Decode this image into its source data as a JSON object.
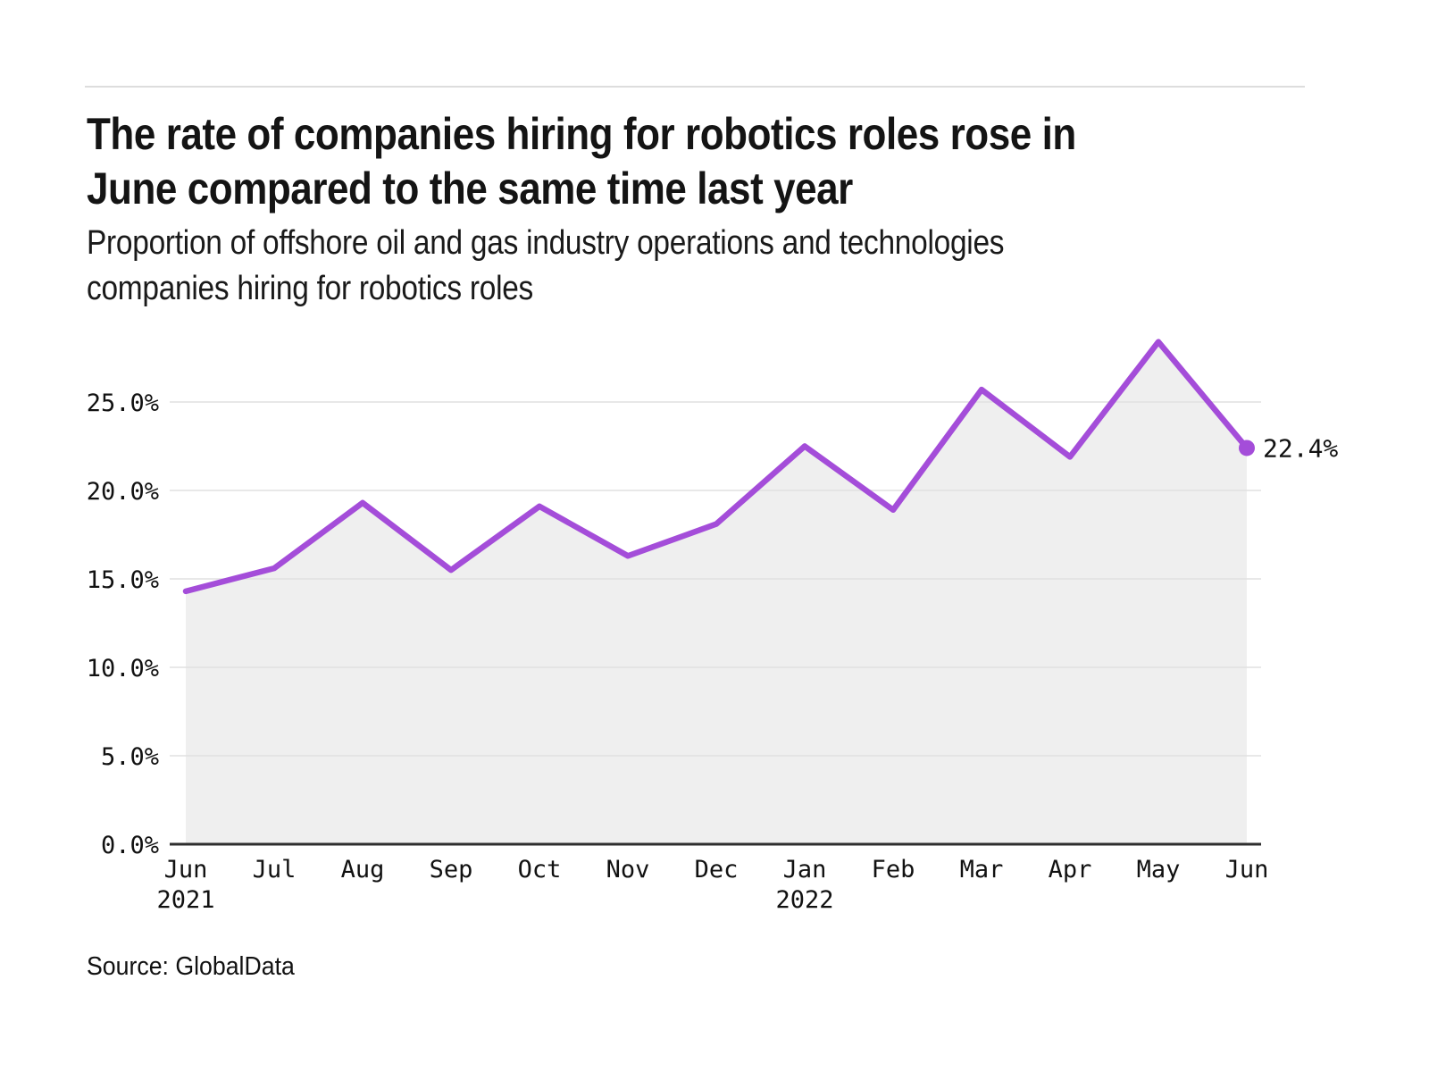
{
  "header": {
    "title_lines": [
      "The rate of companies hiring for robotics roles rose in",
      "June compared to the same time last year"
    ],
    "subtitle_lines": [
      "Proportion of offshore oil and gas industry operations and technologies",
      "companies hiring for robotics roles"
    ]
  },
  "source": {
    "label": "Source: GlobalData"
  },
  "chart_data": {
    "type": "area",
    "title": "The rate of companies hiring for robotics roles rose in June compared to the same time last year",
    "subtitle": "Proportion of offshore oil and gas industry operations and technologies companies hiring for robotics roles",
    "source": "Source: GlobalData",
    "categories": [
      "Jun",
      "Jul",
      "Aug",
      "Sep",
      "Oct",
      "Nov",
      "Dec",
      "Jan",
      "Feb",
      "Mar",
      "Apr",
      "May",
      "Jun"
    ],
    "year_labels": [
      {
        "index": 0,
        "label": "2021"
      },
      {
        "index": 7,
        "label": "2022"
      }
    ],
    "values": [
      14.3,
      15.6,
      19.3,
      15.5,
      19.1,
      16.3,
      18.1,
      22.5,
      18.9,
      25.7,
      21.9,
      28.4,
      22.4
    ],
    "unit": "%",
    "y_ticks": [
      0,
      5,
      10,
      15,
      20,
      25
    ],
    "y_tick_labels": [
      "0.0%",
      "5.0%",
      "10.0%",
      "15.0%",
      "20.0%",
      "25.0%"
    ],
    "ylim": [
      0,
      30
    ],
    "end_label": "22.4%",
    "grid": "horizontal",
    "legend": "none",
    "line_color": "#a44dd9",
    "marker_color": "#a44dd9",
    "area_color": "#efefef",
    "gridline_color": "#e0e0e0",
    "axis_color": "#2e2e2e",
    "label_color": "#111111"
  }
}
